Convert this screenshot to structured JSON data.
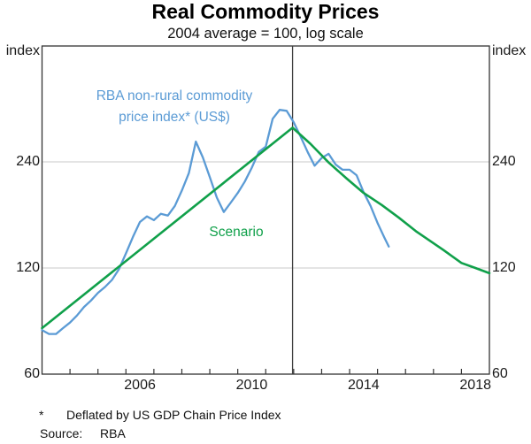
{
  "title": "Real Commodity Prices",
  "subtitle": "2004 average = 100, log scale",
  "axis": {
    "unit_label": "index",
    "y_ticks": [
      60,
      120,
      240
    ],
    "y_gridlines": [
      120,
      240
    ],
    "x_year_labels": [
      2006,
      2010,
      2014,
      2018
    ],
    "x_tick_years": [
      2004,
      2005,
      2006,
      2007,
      2008,
      2009,
      2010,
      2011,
      2012,
      2013,
      2014,
      2015,
      2016,
      2017,
      2018
    ]
  },
  "annotations": {
    "series1_label_line1": "RBA non-rural commodity",
    "series1_label_line2": "price index* (US$)",
    "series2_label": "Scenario"
  },
  "footnote": {
    "marker": "*",
    "text": "Deflated by US GDP Chain Price Index",
    "source_label": "Source:",
    "source_value": "RBA"
  },
  "colors": {
    "series1": "#5B9BD5",
    "series2": "#10A04A",
    "grid": "#C9C9C9",
    "frame": "#333333",
    "vline": "#404040",
    "text": "#1A1A1A"
  },
  "chart_data": {
    "type": "line",
    "title": "Real Commodity Prices",
    "subtitle": "2004 average = 100, log scale",
    "ylabel": "index",
    "y_scale": "log2",
    "xlim": [
      2003.0,
      2019.0
    ],
    "ylim": [
      60,
      512
    ],
    "grid": "horizontal, at 120 and 240",
    "legend": "inline text annotations",
    "vline_x": 2011.96,
    "series": [
      {
        "name": "RBA non-rural commodity price index* (US$)",
        "color_key": "series1",
        "points": [
          [
            2003.0,
            80
          ],
          [
            2003.25,
            78
          ],
          [
            2003.5,
            78
          ],
          [
            2003.75,
            81
          ],
          [
            2004.0,
            84
          ],
          [
            2004.25,
            88
          ],
          [
            2004.5,
            93
          ],
          [
            2004.75,
            97
          ],
          [
            2005.0,
            102
          ],
          [
            2005.25,
            106
          ],
          [
            2005.5,
            111
          ],
          [
            2005.75,
            119
          ],
          [
            2006.0,
            132
          ],
          [
            2006.25,
            147
          ],
          [
            2006.5,
            162
          ],
          [
            2006.75,
            168
          ],
          [
            2007.0,
            164
          ],
          [
            2007.25,
            171
          ],
          [
            2007.5,
            169
          ],
          [
            2007.75,
            180
          ],
          [
            2008.0,
            199
          ],
          [
            2008.25,
            223
          ],
          [
            2008.5,
            274
          ],
          [
            2008.75,
            247
          ],
          [
            2009.0,
            217
          ],
          [
            2009.25,
            190
          ],
          [
            2009.5,
            173
          ],
          [
            2009.75,
            184
          ],
          [
            2010.0,
            196
          ],
          [
            2010.25,
            211
          ],
          [
            2010.5,
            231
          ],
          [
            2010.75,
            256
          ],
          [
            2011.0,
            265
          ],
          [
            2011.25,
            318
          ],
          [
            2011.5,
            337
          ],
          [
            2011.75,
            335
          ],
          [
            2012.0,
            311
          ],
          [
            2012.25,
            283
          ],
          [
            2012.5,
            256
          ],
          [
            2012.75,
            234
          ],
          [
            2013.0,
            246
          ],
          [
            2013.25,
            253
          ],
          [
            2013.5,
            236
          ],
          [
            2013.75,
            228
          ],
          [
            2014.0,
            228
          ],
          [
            2014.25,
            220
          ],
          [
            2014.5,
            197
          ],
          [
            2014.75,
            180
          ],
          [
            2015.0,
            161
          ],
          [
            2015.25,
            146
          ],
          [
            2015.4,
            138
          ]
        ]
      },
      {
        "name": "Scenario",
        "color_key": "series2",
        "points": [
          [
            2003.0,
            81
          ],
          [
            2011.96,
            300
          ],
          [
            2012.6,
            270
          ],
          [
            2013.25,
            239
          ],
          [
            2013.9,
            215
          ],
          [
            2014.5,
            196
          ],
          [
            2015.15,
            181
          ],
          [
            2015.75,
            167
          ],
          [
            2016.4,
            152
          ],
          [
            2017.35,
            135
          ],
          [
            2018.0,
            124
          ],
          [
            2018.5,
            120
          ],
          [
            2019.0,
            116
          ]
        ]
      }
    ]
  }
}
